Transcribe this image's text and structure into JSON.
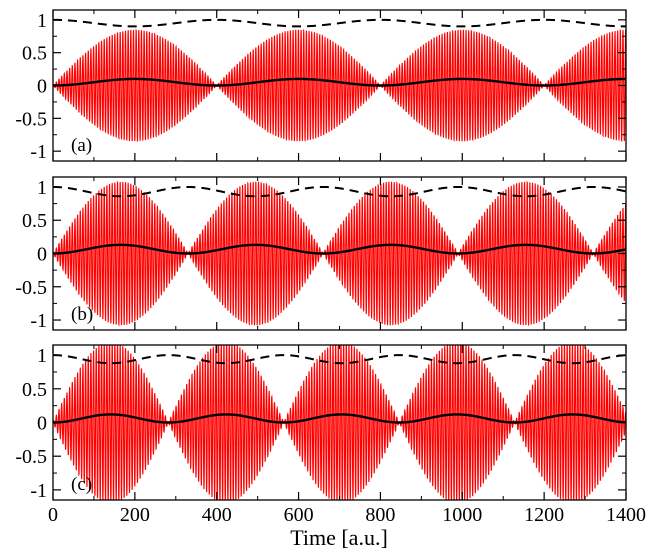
{
  "figure": {
    "xlabel": "Time [a.u.]"
  },
  "colors": {
    "oscillation": "#ff0000",
    "dashed_curve": "#000000",
    "solid_curve": "#000000"
  },
  "chart_data": [
    {
      "type": "line",
      "panel_label": "(a)",
      "xlim": [
        0,
        1400
      ],
      "ylim": [
        -1.15,
        1.15
      ],
      "xticks": [
        0,
        200,
        400,
        600,
        800,
        1000,
        1200,
        1400
      ],
      "yticks": [
        -1,
        -0.5,
        0,
        0.5,
        1
      ],
      "ytick_labels": [
        "-1",
        "-0.5",
        "0",
        "0.5",
        "1"
      ],
      "grid": false,
      "series": [
        {
          "style": "red-fast-oscillation",
          "envelope_peak": 0.85,
          "envelope_period": 400,
          "envelope_peak_times": [
            200,
            600,
            1000,
            1400
          ],
          "envelope_node_times": [
            0,
            400,
            800,
            1200
          ],
          "carrier_period": 6.5
        },
        {
          "style": "dashed",
          "baseline": 1.0,
          "dip_depth": 0.1,
          "period": 400,
          "min_times": [
            200,
            600,
            1000
          ]
        },
        {
          "style": "solid",
          "amplitude": 0.1,
          "period": 400,
          "peak_times": [
            200,
            600,
            1000
          ]
        }
      ]
    },
    {
      "type": "line",
      "panel_label": "(b)",
      "xlim": [
        0,
        1400
      ],
      "ylim": [
        -1.15,
        1.15
      ],
      "xticks": [
        0,
        200,
        400,
        600,
        800,
        1000,
        1200,
        1400
      ],
      "yticks": [
        -1,
        -0.5,
        0,
        0.5,
        1
      ],
      "ytick_labels": [
        "-1",
        "-0.5",
        "0",
        "0.5",
        "1"
      ],
      "grid": false,
      "series": [
        {
          "style": "red-fast-oscillation",
          "envelope_peak": 1.08,
          "envelope_period": 330,
          "envelope_peak_times": [
            170,
            500,
            840,
            1170
          ],
          "envelope_node_times": [
            0,
            330,
            670,
            1000,
            1340
          ],
          "carrier_period": 6.5
        },
        {
          "style": "dashed",
          "baseline": 1.0,
          "dip_depth": 0.14,
          "period": 330,
          "min_times": [
            170,
            500,
            840,
            1170
          ]
        },
        {
          "style": "solid",
          "amplitude": 0.13,
          "period": 330,
          "peak_times": [
            170,
            500,
            840,
            1170
          ]
        }
      ]
    },
    {
      "type": "line",
      "panel_label": "(c)",
      "xlim": [
        0,
        1400
      ],
      "ylim": [
        -1.15,
        1.15
      ],
      "xticks": [
        0,
        200,
        400,
        600,
        800,
        1000,
        1200,
        1400
      ],
      "xtick_labels": [
        "0",
        "200",
        "400",
        "600",
        "800",
        "1000",
        "1200",
        "1400"
      ],
      "yticks": [
        -1,
        -0.5,
        0,
        0.5,
        1
      ],
      "ytick_labels": [
        "-1",
        "-0.5",
        "0",
        "0.5",
        "1"
      ],
      "grid": false,
      "series": [
        {
          "style": "red-fast-oscillation",
          "envelope_peak": 1.2,
          "envelope_period": 282,
          "envelope_peak_times": [
            141,
            423,
            705,
            987,
            1269
          ],
          "envelope_node_times": [
            0,
            282,
            564,
            846,
            1128,
            1410
          ],
          "carrier_period": 6.5
        },
        {
          "style": "dashed",
          "baseline": 1.0,
          "dip_depth": 0.12,
          "period": 282,
          "min_times": [
            141,
            423,
            705,
            987,
            1269
          ]
        },
        {
          "style": "solid",
          "amplitude": 0.12,
          "period": 282,
          "peak_times": [
            141,
            423,
            705,
            987,
            1269
          ]
        }
      ]
    }
  ]
}
